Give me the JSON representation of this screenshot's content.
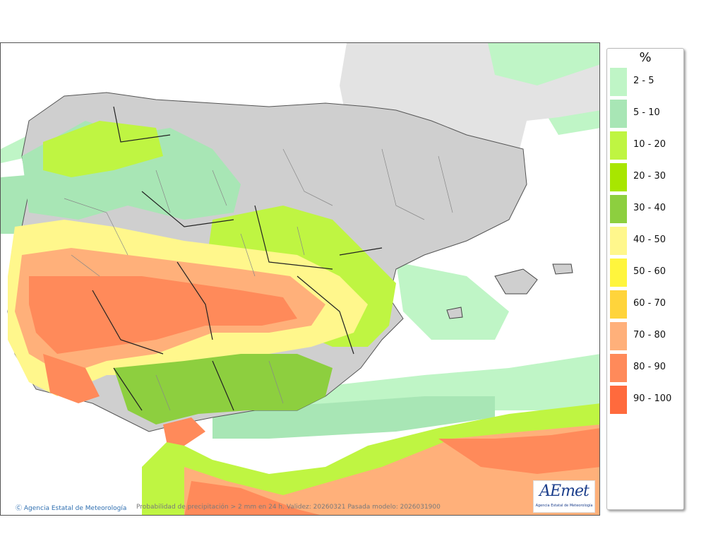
{
  "legend": {
    "unit": "%",
    "items": [
      {
        "label": "2 - 5",
        "color": "#bff5c6"
      },
      {
        "label": "5 - 10",
        "color": "#a8e6b5"
      },
      {
        "label": "10 - 20",
        "color": "#bff542"
      },
      {
        "label": "20 - 30",
        "color": "#a8e600"
      },
      {
        "label": "30 - 40",
        "color": "#8dcf3f"
      },
      {
        "label": "40 - 50",
        "color": "#fff78c"
      },
      {
        "label": "50 - 60",
        "color": "#fff53d"
      },
      {
        "label": "60 - 70",
        "color": "#ffd43b"
      },
      {
        "label": "70 - 80",
        "color": "#ffb07a"
      },
      {
        "label": "80 - 90",
        "color": "#ff8a5a"
      },
      {
        "label": "90 - 100",
        "color": "#ff6a3d"
      }
    ]
  },
  "footer": {
    "credit": "Agencia Estatal de Meteorología",
    "caption": "Probabilidad de precipitación > 2 mm en 24 h. Validez: 20260321 Pasada modelo: 2026031900"
  },
  "logo": {
    "word": "AEmet",
    "subtitle": "Agencia Estatal de Meteorología"
  },
  "colors": {
    "land_gray": "#c8c8c8",
    "sea_white": "#ffffff",
    "border_dark": "#222222"
  }
}
